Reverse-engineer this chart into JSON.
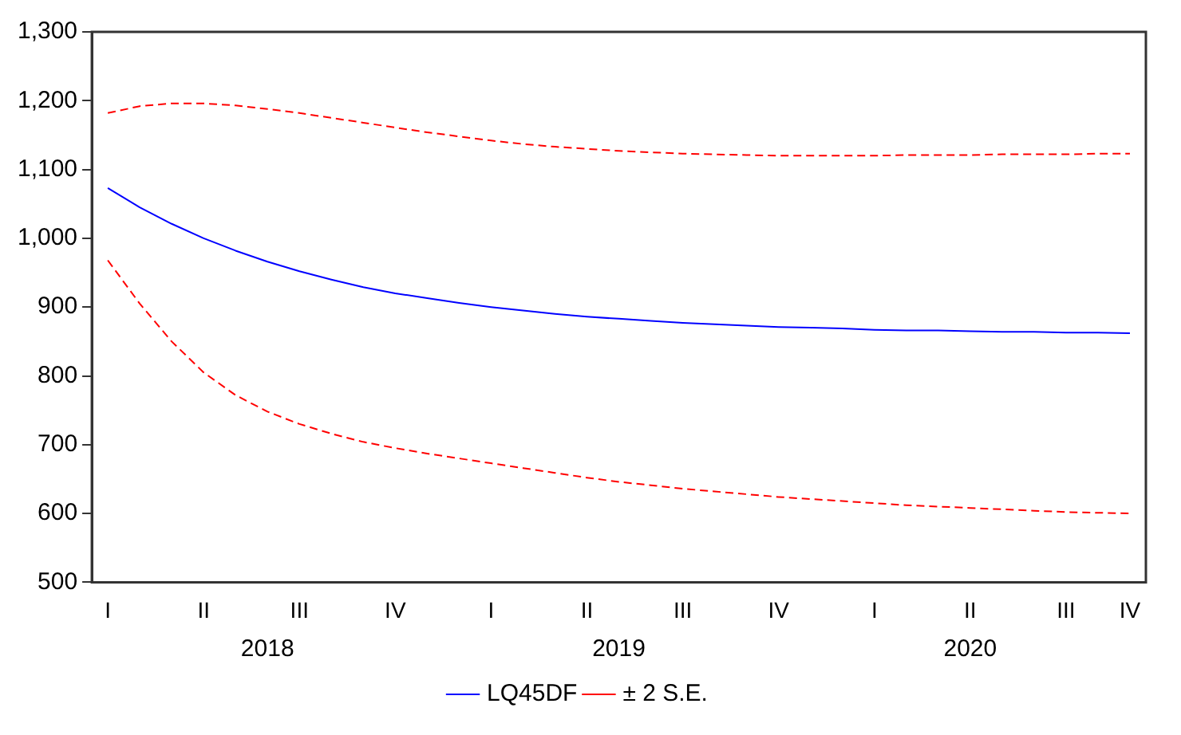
{
  "chart_data": {
    "type": "line",
    "categories": [
      "I",
      null,
      null,
      "II",
      null,
      null,
      "III",
      null,
      null,
      "IV",
      null,
      null,
      "I",
      null,
      null,
      "II",
      null,
      null,
      "III",
      null,
      null,
      "IV",
      null,
      null,
      "I",
      null,
      null,
      "II",
      null,
      null,
      "III",
      null,
      "IV"
    ],
    "series": [
      {
        "name": "LQ45DF",
        "color": "#0000ff",
        "line_style": "solid",
        "values": [
          1073,
          1045,
          1021,
          1000,
          982,
          966,
          952,
          940,
          929,
          920,
          913,
          906,
          900,
          895,
          890,
          886,
          883,
          880,
          877,
          875,
          873,
          871,
          870,
          869,
          867,
          866,
          866,
          865,
          864,
          864,
          863,
          863,
          862
        ]
      },
      {
        "name": "± 2 S.E.",
        "color": "#ff0000",
        "line_style": "dashed",
        "values": [
          1182,
          1192,
          1196,
          1196,
          1193,
          1188,
          1182,
          1175,
          1168,
          1161,
          1154,
          1148,
          1142,
          1137,
          1133,
          1130,
          1127,
          1125,
          1123,
          1122,
          1121,
          1120,
          1120,
          1120,
          1120,
          1121,
          1121,
          1121,
          1122,
          1122,
          1122,
          1123,
          1123
        ]
      },
      {
        "color": "#ff0000",
        "line_style": "dashed",
        "values": [
          968,
          905,
          850,
          805,
          772,
          748,
          730,
          716,
          704,
          695,
          687,
          680,
          673,
          666,
          659,
          652,
          646,
          641,
          636,
          632,
          628,
          624,
          621,
          618,
          615,
          612,
          610,
          608,
          606,
          604,
          602,
          601,
          600
        ]
      }
    ],
    "ylim": [
      500,
      1300
    ],
    "yticks": [
      500,
      600,
      700,
      800,
      900,
      {
        "value": 1000,
        "label": "1,000"
      },
      {
        "value": 1100,
        "label": "1,100"
      },
      {
        "value": 1200,
        "label": "1,200"
      },
      {
        "value": 1300,
        "label": "1,300"
      }
    ],
    "annotations": [
      "2018",
      "2019",
      "2020"
    ],
    "grid": false,
    "legend": "bottom",
    "marker": "none"
  }
}
